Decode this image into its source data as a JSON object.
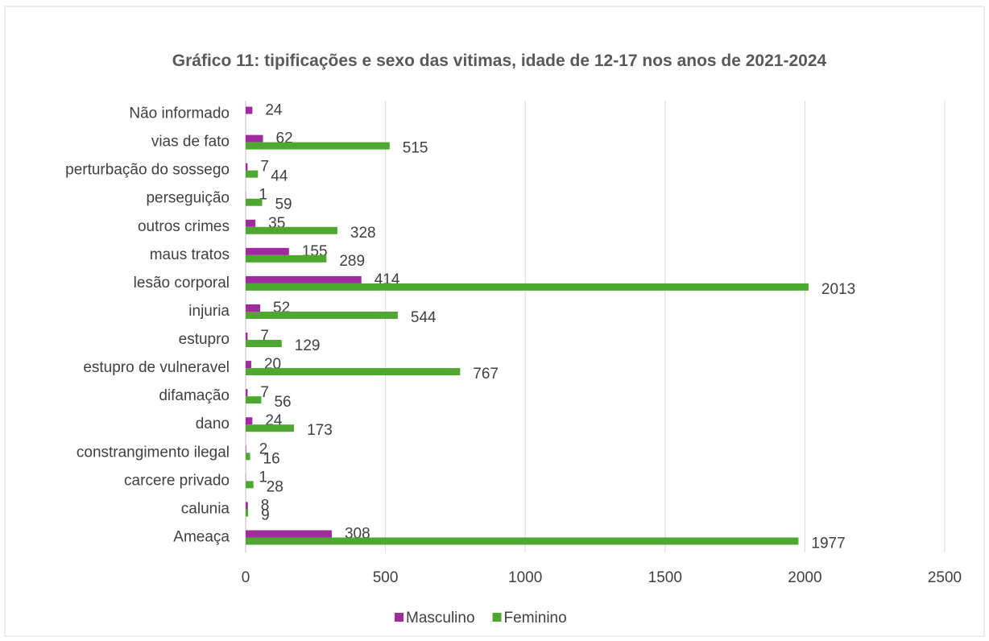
{
  "chart_data": {
    "type": "barh",
    "title": "Gráfico 11: tipificações e sexo das vitimas, idade de 12-17 nos anos de 2021-2024",
    "categories": [
      "Não informado",
      "vias de fato",
      "perturbação do sossego",
      "perseguição",
      "outros crimes ",
      "maus tratos",
      "lesão corporal ",
      "injuria",
      "estupro ",
      "estupro de vulneravel",
      "difamação",
      "dano",
      "constrangimento ilegal ",
      "carcere privado",
      "calunia",
      "Ameaça "
    ],
    "series": [
      {
        "name": "Masculino",
        "color": "#a02b9e",
        "values": [
          24,
          62,
          7,
          1,
          35,
          155,
          414,
          52,
          7,
          20,
          7,
          24,
          2,
          1,
          8,
          308
        ]
      },
      {
        "name": "Feminino",
        "color": "#4ea72e",
        "values": [
          null,
          515,
          44,
          59,
          328,
          289,
          2013,
          544,
          129,
          767,
          56,
          173,
          16,
          28,
          9,
          1977
        ]
      }
    ],
    "xlim": [
      0,
      2500
    ],
    "xticks": [
      0,
      500,
      1000,
      1500,
      2000,
      2500
    ],
    "grid": true,
    "legend": "bottom"
  }
}
